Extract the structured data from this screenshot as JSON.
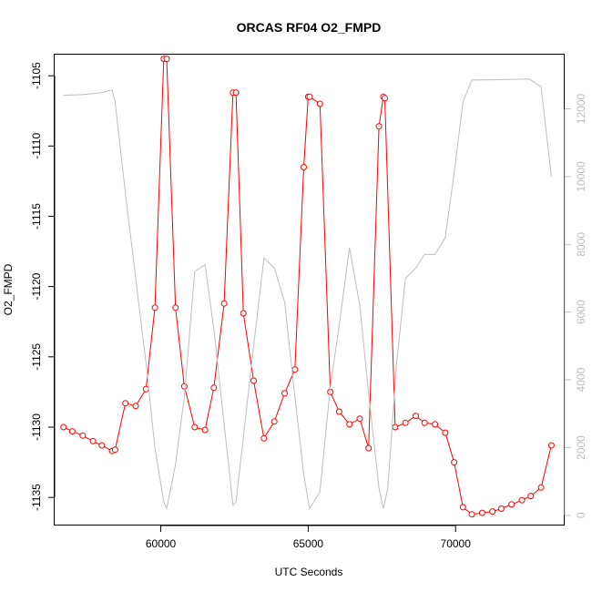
{
  "chart_data": {
    "type": "line",
    "title": "ORCAS RF04 O2_FMPD",
    "xlabel": "UTC Seconds",
    "ylabel": "O2_FMPD",
    "xlim": [
      56400,
      73700
    ],
    "ylim": [
      -1137.0,
      -1103.5
    ],
    "xticks": [
      60000,
      65000,
      70000
    ],
    "xtick_labels": [
      "60000",
      "65000",
      "70000"
    ],
    "yticks": [
      -1105,
      -1110,
      -1115,
      -1120,
      -1125,
      -1130,
      -1135
    ],
    "ytick_labels": [
      "-1105",
      "-1110",
      "-1115",
      "-1120",
      "-1125",
      "-1130",
      "-1135"
    ],
    "y2lim": [
      -300,
      13600
    ],
    "y2ticks": [
      0,
      2000,
      4000,
      6000,
      8000,
      10000,
      12000
    ],
    "y2tick_labels": [
      "0",
      "2000",
      "4000",
      "6000",
      "8000",
      "10000",
      "12000"
    ],
    "grid": false,
    "legend": "none",
    "series": [
      {
        "style": "line+points",
        "color": "#ff0000",
        "axis": "left",
        "x": [
          56700,
          57000,
          57350,
          57700,
          58000,
          58350,
          58450,
          58800,
          59150,
          59500,
          59800,
          60100,
          60200,
          60500,
          60800,
          61150,
          61500,
          61800,
          62150,
          62450,
          62550,
          62800,
          63150,
          63500,
          63850,
          64200,
          64550,
          64850,
          65000,
          65050,
          65400,
          65750,
          66050,
          66400,
          66750,
          67050,
          67400,
          67550,
          67600,
          67950,
          68300,
          68650,
          68950,
          69300,
          69650,
          69950,
          70250,
          70550,
          70900,
          71250,
          71550,
          71900,
          72250,
          72550,
          72900,
          73250
        ],
        "y": [
          -1130.0,
          -1130.3,
          -1130.6,
          -1131.0,
          -1131.3,
          -1131.7,
          -1131.6,
          -1128.3,
          -1128.5,
          -1127.3,
          -1121.5,
          -1103.8,
          -1103.8,
          -1121.5,
          -1127.1,
          -1130.0,
          -1130.2,
          -1127.2,
          -1121.2,
          -1106.2,
          -1106.2,
          -1121.9,
          -1126.7,
          -1130.8,
          -1129.6,
          -1127.6,
          -1125.9,
          -1111.5,
          -1106.5,
          -1106.5,
          -1107.0,
          -1127.5,
          -1128.9,
          -1129.8,
          -1129.4,
          -1131.5,
          -1108.6,
          -1106.5,
          -1106.6,
          -1130.0,
          -1129.7,
          -1129.2,
          -1129.7,
          -1129.8,
          -1130.4,
          -1132.5,
          -1135.7,
          -1136.2,
          -1136.1,
          -1136.0,
          -1135.8,
          -1135.5,
          -1135.2,
          -1134.9,
          -1134.3,
          -1131.3
        ]
      },
      {
        "style": "line",
        "color": "#bebebe",
        "axis": "right",
        "x": [
          56700,
          57350,
          58000,
          58350,
          58450,
          58800,
          59150,
          59500,
          59800,
          60100,
          60200,
          60500,
          60800,
          61150,
          61500,
          61800,
          62150,
          62450,
          62550,
          62800,
          63150,
          63500,
          63850,
          64200,
          64550,
          64850,
          65050,
          65400,
          65750,
          66050,
          66400,
          66750,
          67050,
          67400,
          67550,
          67700,
          68000,
          68300,
          68650,
          68950,
          69300,
          69650,
          69950,
          70250,
          70550,
          71500,
          72500,
          72900,
          73250
        ],
        "y": [
          12400,
          12420,
          12480,
          12560,
          12200,
          9500,
          7000,
          4500,
          2000,
          400,
          200,
          1500,
          3500,
          7200,
          7400,
          5500,
          2700,
          300,
          400,
          2300,
          5000,
          7600,
          7300,
          6300,
          3500,
          1200,
          200,
          700,
          3800,
          5600,
          7900,
          6200,
          3600,
          800,
          200,
          800,
          4500,
          7000,
          7300,
          7700,
          7700,
          8200,
          10100,
          12200,
          12850,
          12860,
          12880,
          12650,
          10000
        ]
      }
    ]
  }
}
